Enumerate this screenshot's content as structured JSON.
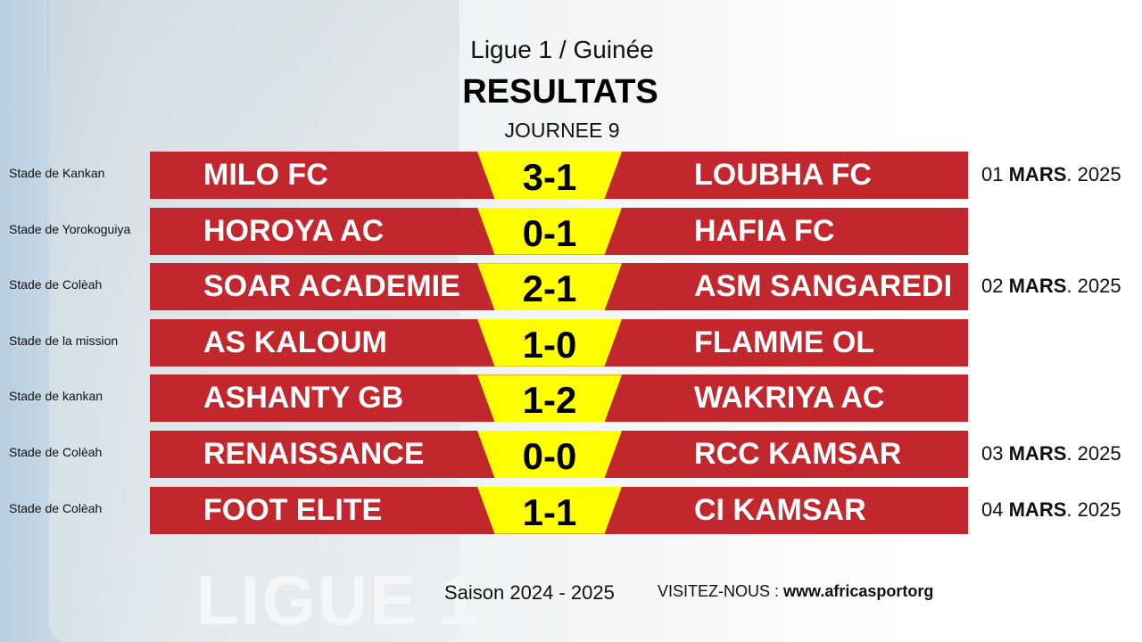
{
  "header": {
    "league": "Ligue 1 / Guinée",
    "title": "RESULTATS",
    "round": "JOURNEE 9"
  },
  "colors": {
    "bar": "#c1272d",
    "score_bg": "#ffff00"
  },
  "matches": [
    {
      "stadium": "Stade de Kankan",
      "home": "MILO FC",
      "score": "3-1",
      "away": "LOUBHA FC",
      "date": {
        "day": "01",
        "month": "MARS",
        "year": ". 2025"
      }
    },
    {
      "stadium": "Stade de Yorokoguiya",
      "home": "HOROYA AC",
      "score": "0-1",
      "away": "HAFIA FC"
    },
    {
      "stadium": "Stade de Colèah",
      "home": "SOAR ACADEMIE",
      "score": "2-1",
      "away": "ASM SANGAREDI",
      "date": {
        "day": "02",
        "month": "MARS",
        "year": ". 2025"
      }
    },
    {
      "stadium": "Stade de la mission",
      "home": "AS KALOUM",
      "score": "1-0",
      "away": "FLAMME OL"
    },
    {
      "stadium": "Stade de kankan",
      "home": "ASHANTY GB",
      "score": "1-2",
      "away": "WAKRIYA AC"
    },
    {
      "stadium": "Stade de Colèah",
      "home": "RENAISSANCE",
      "score": "0-0",
      "away": "RCC KAMSAR",
      "date": {
        "day": "03",
        "month": "MARS",
        "year": ". 2025"
      }
    },
    {
      "stadium": "Stade de Colèah",
      "home": "FOOT ELITE",
      "score": "1-1",
      "away": "CI KAMSAR",
      "date": {
        "day": "04",
        "month": "MARS",
        "year": ". 2025"
      }
    }
  ],
  "footer": {
    "season": "Saison 2024 - 2025",
    "visit_label": "VISITEZ-NOUS : ",
    "website": "www.africasportorg"
  },
  "background": {
    "logo_text": "LIGUE 1"
  }
}
